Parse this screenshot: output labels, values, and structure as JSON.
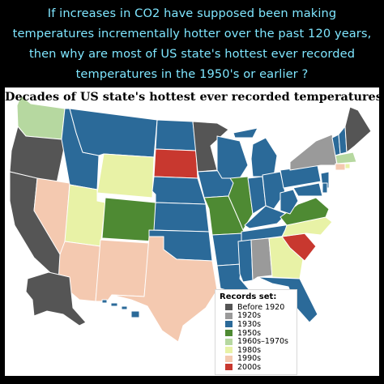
{
  "caption": {
    "line1": "If increases in CO2 have supposed been making",
    "line2": "temperatures incrementally hotter over the past 120 years,",
    "line3": "then why are most of US state's hottest ever recorded",
    "line4": "temperatures in the 1950's or earlier ?"
  },
  "map": {
    "title": "Decades of US state's hottest ever recorded temperatures"
  },
  "colors": {
    "before_1920": "#555555",
    "d1920s": "#9a9a9a",
    "d1930s": "#2b6a99",
    "d1950s": "#4e8a33",
    "d1960_1970s": "#b6d8a0",
    "d1980s": "#e8f2a6",
    "d1990s": "#f4c9b0",
    "d2000s": "#c8382f"
  },
  "legend": {
    "title": "Records set:",
    "items": [
      {
        "label": "Before 1920",
        "color": "#555555"
      },
      {
        "label": "1920s",
        "color": "#9a9a9a"
      },
      {
        "label": "1930s",
        "color": "#2b6a99"
      },
      {
        "label": "1950s",
        "color": "#4e8a33"
      },
      {
        "label": "1960s–1970s",
        "color": "#b6d8a0"
      },
      {
        "label": "1980s",
        "color": "#e8f2a6"
      },
      {
        "label": "1990s",
        "color": "#f4c9b0"
      },
      {
        "label": "2000s",
        "color": "#c8382f"
      }
    ]
  }
}
